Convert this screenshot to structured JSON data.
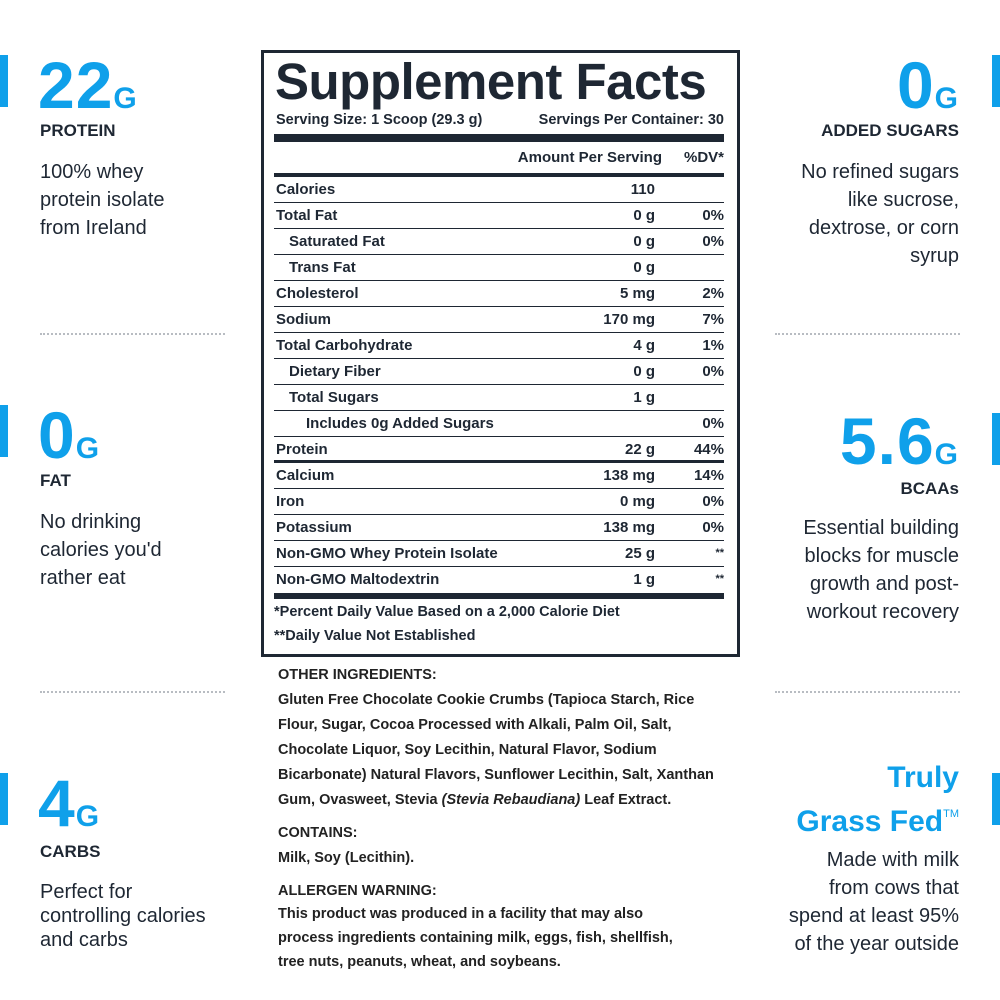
{
  "left": [
    {
      "big": "22",
      "unit": "G",
      "label": "PROTEIN",
      "lines": [
        "100% whey",
        "protein isolate",
        "from Ireland"
      ]
    },
    {
      "big": "0",
      "unit": "G",
      "label": "FAT",
      "lines": [
        "No drinking",
        "calories you'd",
        "rather eat"
      ]
    },
    {
      "big": "4",
      "unit": "G",
      "label": "CARBS",
      "lines": [
        "Perfect for",
        "controlling calories",
        "and carbs"
      ]
    }
  ],
  "right": [
    {
      "big": "0",
      "unit": "G",
      "label": "ADDED SUGARS",
      "lines": [
        "No refined sugars",
        "like sucrose,",
        "dextrose, or corn",
        "syrup"
      ]
    },
    {
      "big": "5.6",
      "unit": "G",
      "label": "BCAAs",
      "lines": [
        "Essential building",
        "blocks for muscle",
        "growth and post-",
        "workout recovery"
      ]
    },
    {
      "title_lines": [
        "Truly",
        "Grass Fed"
      ],
      "mark": "TM",
      "lines": [
        "Made with milk",
        "from cows that",
        "spend at least 95%",
        "of the year outside"
      ]
    }
  ],
  "facts": {
    "title": "Supplement Facts",
    "serving_size": "Serving Size: 1 Scoop (29.3 g)",
    "servings": "Servings Per Container: 30",
    "header_amount": "Amount Per Serving",
    "header_dv": "%DV*",
    "rows": [
      {
        "name": "Calories",
        "amount": "110"
      },
      {
        "name": "Total Fat",
        "amount": "0 g",
        "dv": "0%"
      },
      {
        "name": "Saturated Fat",
        "amount": "0 g",
        "dv": "0%"
      },
      {
        "name": "Trans Fat",
        "amount": "0 g"
      },
      {
        "name": "Cholesterol",
        "amount": "5 mg",
        "dv": "2%"
      },
      {
        "name": "Sodium",
        "amount": "170 mg",
        "dv": "7%"
      },
      {
        "name": "Total Carbohydrate",
        "amount": "4 g",
        "dv": "1%"
      },
      {
        "name": "Dietary Fiber",
        "amount": "0 g",
        "dv": "0%"
      },
      {
        "name": "Total Sugars",
        "amount": "1 g"
      },
      {
        "name": "Includes 0g Added Sugars",
        "dv": "0%"
      },
      {
        "name": "Protein",
        "amount": "22 g",
        "dv": "44%"
      },
      {
        "name": "Calcium",
        "amount": "138 mg",
        "dv": "14%"
      },
      {
        "name": "Iron",
        "amount": "0 mg",
        "dv": "0%"
      },
      {
        "name": "Potassium",
        "amount": "138 mg",
        "dv": "0%"
      },
      {
        "name": "Non-GMO Whey Protein Isolate",
        "amount": "25 g",
        "dv": "**"
      },
      {
        "name": "Non-GMO Maltodextrin",
        "amount": "1 g",
        "dv": "**"
      }
    ],
    "footnotes": [
      "*Percent Daily Value Based on a 2,000 Calorie Diet",
      "**Daily Value Not Established"
    ]
  },
  "ingredients": {
    "heading": "OTHER INGREDIENTS:",
    "lines": [
      "Gluten Free Chocolate Cookie Crumbs (Tapioca Starch, Rice",
      "Flour, Sugar, Cocoa Processed with Alkali, Palm Oil, Salt,",
      "Chocolate Liquor, Soy Lecithin, Natural Flavor, Sodium",
      "Bicarbonate) Natural Flavors, Sunflower Lecithin, Salt, Xanthan"
    ],
    "last_line": {
      "before": "Gum, Ovasweet, Stevia ",
      "italic": "(Stevia Rebaudiana)",
      "after": " Leaf Extract."
    },
    "contains_heading": "CONTAINS:",
    "contains": "Milk, Soy (Lecithin).",
    "warning_heading": "ALLERGEN WARNING:",
    "warning_lines": [
      "This product was produced in a facility that may also",
      "process ingredients containing milk, eggs, fish, shellfish,",
      "tree nuts, peanuts, wheat, and soybeans."
    ]
  }
}
